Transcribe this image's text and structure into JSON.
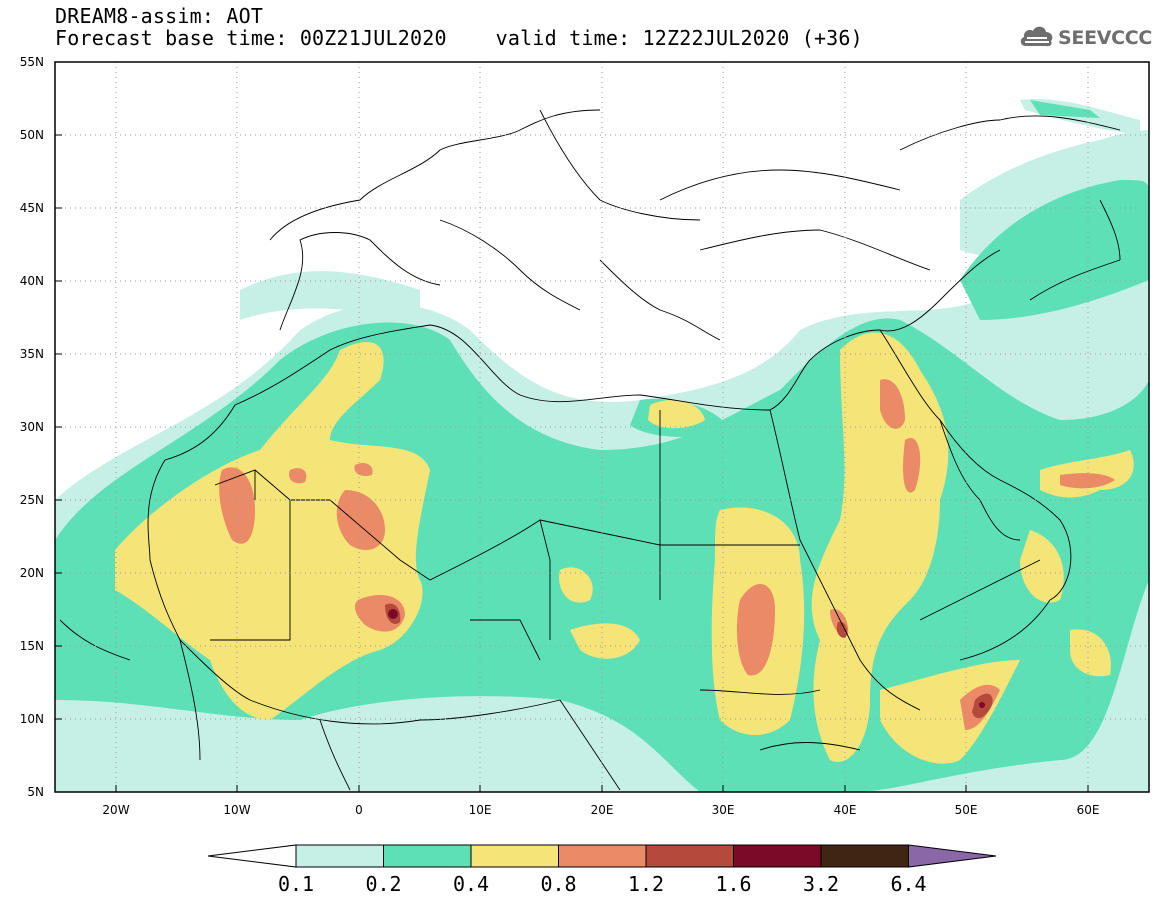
{
  "title": {
    "line1": "DREAM8-assim: AOT",
    "line2": "Forecast base time: 00Z21JUL2020    valid time: 12Z22JUL2020 (+36)"
  },
  "logo": {
    "text": "SEEVCCC",
    "icon": "cloud-icon"
  },
  "map": {
    "lon_range": [
      -25,
      65
    ],
    "lat_range": [
      5,
      55
    ],
    "lat_ticks": [
      "55N",
      "50N",
      "45N",
      "40N",
      "35N",
      "30N",
      "25N",
      "20N",
      "15N",
      "10N",
      "5N"
    ],
    "lon_ticks": [
      "20W",
      "10W",
      "0",
      "10E",
      "20E",
      "30E",
      "40E",
      "50E",
      "60E"
    ],
    "gridlines": "dotted",
    "borders": "country outlines"
  },
  "colorbar": {
    "levels": [
      "0.1",
      "0.2",
      "0.4",
      "0.8",
      "1.2",
      "1.6",
      "3.2",
      "6.4"
    ],
    "colors": [
      "#c6f0e6",
      "#5ee0b7",
      "#f5e478",
      "#ea8a66",
      "#b54a3c",
      "#7a0a26",
      "#402414",
      "#8a68a8"
    ]
  },
  "chart_data": {
    "type": "heatmap",
    "variable": "AOT",
    "xlabel": "",
    "ylabel": "",
    "xlim": [
      -25,
      65
    ],
    "ylim": [
      5,
      55
    ],
    "color_levels": [
      0.1,
      0.2,
      0.4,
      0.8,
      1.2,
      1.6,
      3.2,
      6.4
    ],
    "max_regions": [
      {
        "lat": 17,
        "lon": 3
      },
      {
        "lat": 16.5,
        "lon": 41
      },
      {
        "lat": 11,
        "lon": 51
      }
    ]
  }
}
